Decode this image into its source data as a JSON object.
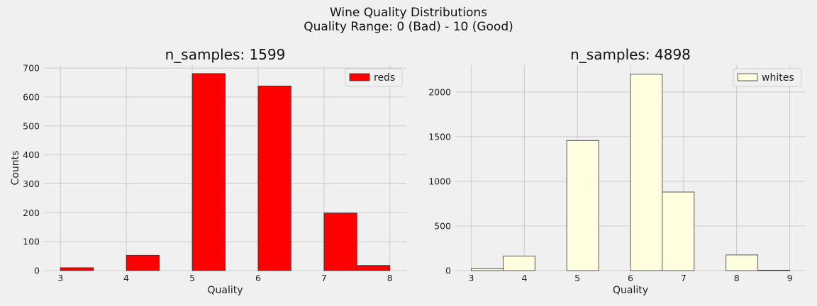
{
  "figure": {
    "title_line1": "Wine Quality Distributions",
    "title_line2": "Quality Range: 0 (Bad) - 10 (Good)"
  },
  "chart_data": [
    {
      "type": "bar",
      "title": "n_samples: 1599",
      "xlabel": "Quality",
      "ylabel": "Counts",
      "xlim": [
        2.75,
        8.25
      ],
      "ylim": [
        0,
        710
      ],
      "xticks": [
        3,
        4,
        5,
        6,
        7,
        8
      ],
      "yticks": [
        0,
        100,
        200,
        300,
        400,
        500,
        600,
        700
      ],
      "grid": true,
      "legend": "top-right",
      "series": [
        {
          "name": "reds",
          "color": "#ff0000",
          "edge_color": "#333333",
          "bins": [
            {
              "x0": 3.0,
              "x1": 3.5,
              "count": 10
            },
            {
              "x0": 4.0,
              "x1": 4.5,
              "count": 53
            },
            {
              "x0": 5.0,
              "x1": 5.5,
              "count": 681
            },
            {
              "x0": 6.0,
              "x1": 6.5,
              "count": 638
            },
            {
              "x0": 7.0,
              "x1": 7.5,
              "count": 199
            },
            {
              "x0": 7.5,
              "x1": 8.0,
              "count": 18
            }
          ]
        }
      ]
    },
    {
      "type": "bar",
      "title": "n_samples: 4898",
      "xlabel": "Quality",
      "ylabel": "",
      "xlim": [
        2.7,
        9.3
      ],
      "ylim": [
        0,
        2300
      ],
      "xticks": [
        3,
        4,
        5,
        6,
        7,
        8,
        9
      ],
      "yticks": [
        0,
        500,
        1000,
        1500,
        2000
      ],
      "grid": true,
      "legend": "top-right",
      "series": [
        {
          "name": "whites",
          "color": "#ffffe0",
          "edge_color": "#333333",
          "bins": [
            {
              "x0": 3.0,
              "x1": 3.6,
              "count": 20
            },
            {
              "x0": 3.6,
              "x1": 4.2,
              "count": 163
            },
            {
              "x0": 4.8,
              "x1": 5.4,
              "count": 1457
            },
            {
              "x0": 6.0,
              "x1": 6.6,
              "count": 2198
            },
            {
              "x0": 6.6,
              "x1": 7.2,
              "count": 880
            },
            {
              "x0": 7.8,
              "x1": 8.4,
              "count": 175
            },
            {
              "x0": 8.4,
              "x1": 9.0,
              "count": 5
            }
          ]
        }
      ]
    }
  ]
}
